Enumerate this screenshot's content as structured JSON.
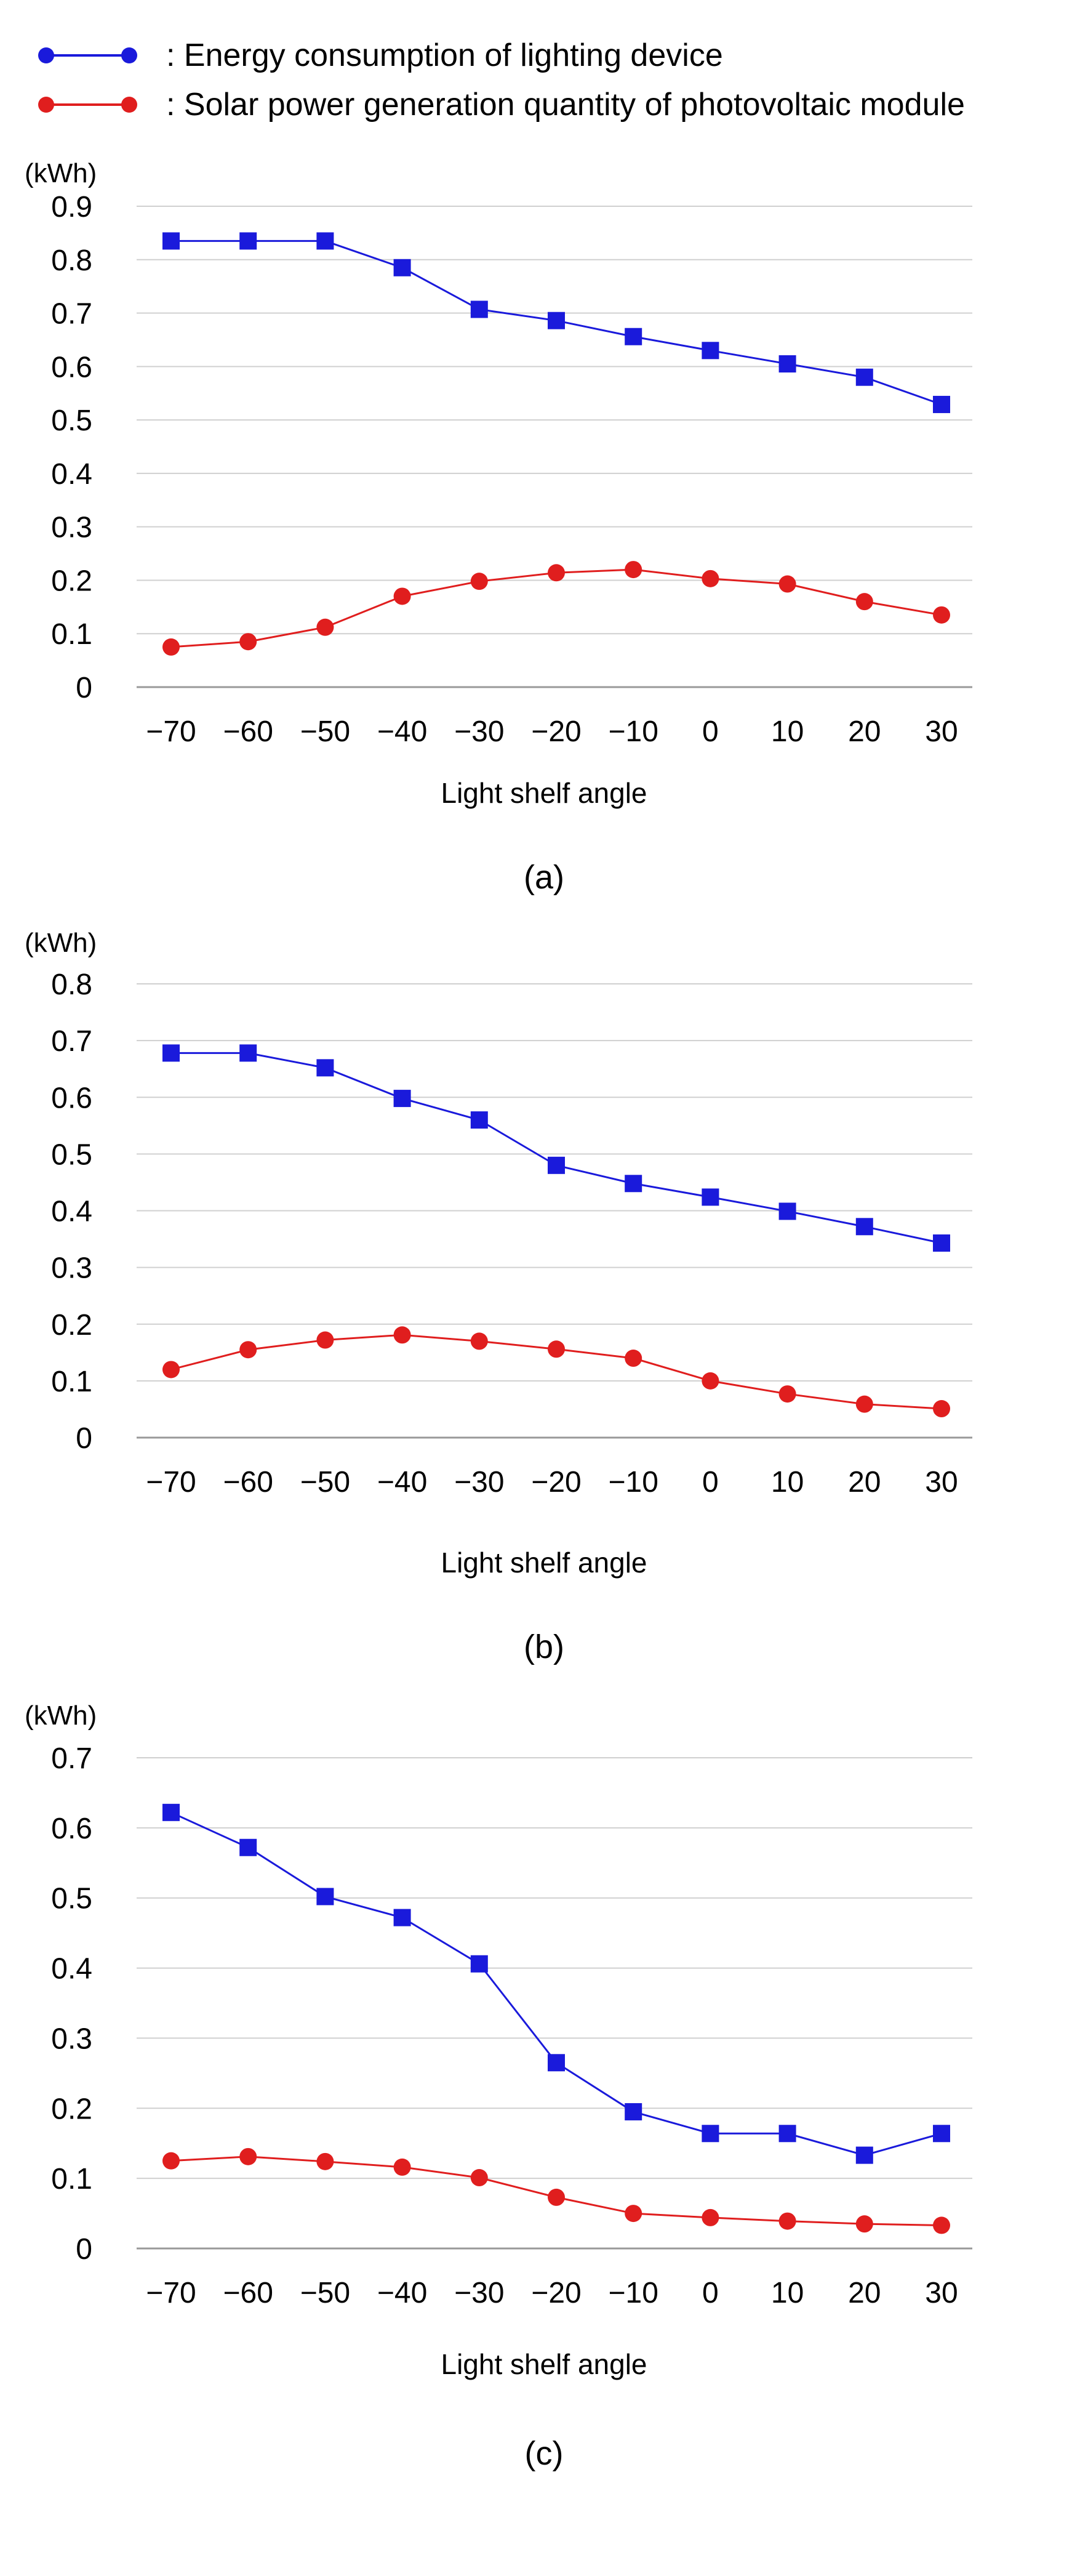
{
  "legend": {
    "energy_label": ": Energy consumption of lighting device",
    "solar_label": ": Solar power generation quantity of photovoltaic module",
    "energy_color": "#1a1adb",
    "solar_color": "#e01e1e"
  },
  "chart_data": [
    {
      "type": "line",
      "caption": "(a)",
      "ylabel": "(kWh)",
      "xlabel": "Light shelf angle",
      "categories": [
        "−70",
        "−60",
        "−50",
        "−40",
        "−30",
        "−20",
        "−10",
        "0",
        "10",
        "20",
        "30"
      ],
      "yticks": [
        "0",
        "0.1",
        "0.2",
        "0.3",
        "0.4",
        "0.5",
        "0.6",
        "0.7",
        "0.8",
        "0.9"
      ],
      "ylim": [
        0,
        0.9
      ],
      "grid": true,
      "series": [
        {
          "name": "Energy consumption of lighting device",
          "marker": "square",
          "values": [
            0.835,
            0.835,
            0.835,
            0.785,
            0.707,
            0.686,
            0.656,
            0.63,
            0.605,
            0.58,
            0.529
          ]
        },
        {
          "name": "Solar power generation quantity of photovoltaic module",
          "marker": "circle",
          "values": [
            0.075,
            0.085,
            0.112,
            0.17,
            0.198,
            0.214,
            0.22,
            0.203,
            0.193,
            0.16,
            0.135
          ]
        }
      ]
    },
    {
      "type": "line",
      "caption": "(b)",
      "ylabel": "(kWh)",
      "xlabel": "Light shelf angle",
      "categories": [
        "−70",
        "−60",
        "−50",
        "−40",
        "−30",
        "−20",
        "−10",
        "0",
        "10",
        "20",
        "30"
      ],
      "yticks": [
        "0",
        "0.1",
        "0.2",
        "0.3",
        "0.4",
        "0.5",
        "0.6",
        "0.7",
        "0.8"
      ],
      "ylim": [
        0,
        0.8
      ],
      "grid": true,
      "series": [
        {
          "name": "Energy consumption of lighting device",
          "marker": "square",
          "values": [
            0.678,
            0.678,
            0.652,
            0.598,
            0.56,
            0.48,
            0.448,
            0.424,
            0.399,
            0.372,
            0.343
          ]
        },
        {
          "name": "Solar power generation quantity of photovoltaic module",
          "marker": "circle",
          "values": [
            0.12,
            0.155,
            0.172,
            0.181,
            0.17,
            0.156,
            0.14,
            0.1,
            0.077,
            0.059,
            0.051
          ]
        }
      ]
    },
    {
      "type": "line",
      "caption": "(c)",
      "ylabel": "(kWh)",
      "xlabel": "Light shelf angle",
      "categories": [
        "−70",
        "−60",
        "−50",
        "−40",
        "−30",
        "−20",
        "−10",
        "0",
        "10",
        "20",
        "30"
      ],
      "yticks": [
        "0",
        "0.1",
        "0.2",
        "0.3",
        "0.4",
        "0.5",
        "0.6",
        "0.7"
      ],
      "ylim": [
        0,
        0.7
      ],
      "grid": true,
      "series": [
        {
          "name": "Energy consumption of lighting device",
          "marker": "square",
          "values": [
            0.622,
            0.572,
            0.502,
            0.472,
            0.406,
            0.265,
            0.195,
            0.164,
            0.164,
            0.133,
            0.164
          ]
        },
        {
          "name": "Solar power generation quantity of photovoltaic module",
          "marker": "circle",
          "values": [
            0.125,
            0.131,
            0.124,
            0.116,
            0.101,
            0.073,
            0.05,
            0.044,
            0.039,
            0.035,
            0.033
          ]
        }
      ]
    }
  ]
}
